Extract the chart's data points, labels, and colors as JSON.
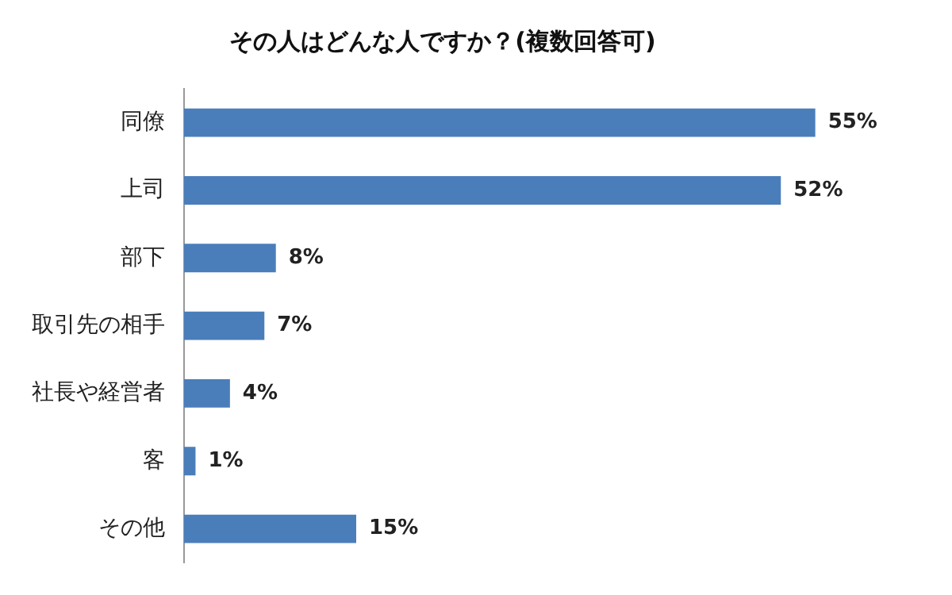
{
  "chart_data": {
    "type": "bar",
    "orientation": "horizontal",
    "title": "その人はどんな人ですか？(複数回答可)",
    "categories": [
      "同僚",
      "上司",
      "部下",
      "取引先の相手",
      "社長や経営者",
      "客",
      "その他"
    ],
    "values": [
      55,
      52,
      8,
      7,
      4,
      1,
      15
    ],
    "value_labels": [
      "55%",
      "52%",
      "8%",
      "7%",
      "4%",
      "1%",
      "15%"
    ],
    "color": "#4a7ebb",
    "tick_labels": "y",
    "grid": false,
    "legend": false
  }
}
